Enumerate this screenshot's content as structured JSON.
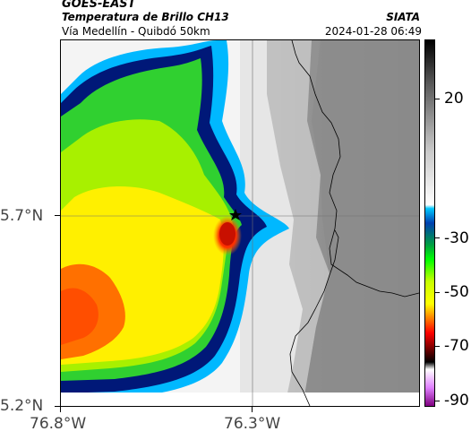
{
  "header": {
    "satellite": "GOES-EAST",
    "product": "Temperatura de Brillo CH13",
    "organization": "SIATA",
    "region": "Vía Medellín - Quibdó 50km",
    "datetime": "2024-01-28 06:49"
  },
  "axes": {
    "y_ticks": [
      {
        "label": "5.7°N",
        "value": 5.7
      },
      {
        "label": "5.2°N",
        "value": 5.2
      }
    ],
    "x_ticks": [
      {
        "label": "76.8°W",
        "value": -76.8
      },
      {
        "label": "76.3°W",
        "value": -76.3
      }
    ]
  },
  "colorbar": {
    "labels": [
      "20",
      "-30",
      "-50",
      "-70",
      "-90"
    ],
    "values": [
      20,
      -30,
      -50,
      -70,
      -90
    ],
    "stops": [
      "#000000",
      "#5a5a5a",
      "#c8c8c8",
      "#ffffff",
      "#00c8ff",
      "#0040b0",
      "#00a040",
      "#00ff00",
      "#c8ff00",
      "#ffff00",
      "#ff8000",
      "#ff0000",
      "#800000",
      "#000000",
      "#ffffff",
      "#e080ff",
      "#800080"
    ]
  },
  "map": {
    "marker": "star",
    "marker_color": "#000000",
    "colors": {
      "gray_land": "#8c8c8c",
      "cold_white": "#e8e8e8",
      "cyan": "#00b8ff",
      "navy": "#001878",
      "green": "#30d030",
      "lime": "#a8f000",
      "yellow": "#fff000",
      "orange": "#ff7000",
      "red": "#f02000",
      "border": "#000000"
    }
  }
}
